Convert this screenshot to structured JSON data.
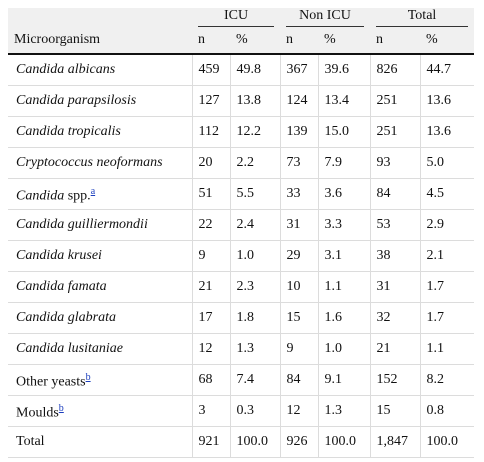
{
  "table": {
    "column_label": "Microorganism",
    "group_headers": [
      "ICU",
      "Non ICU",
      "Total"
    ],
    "sub_headers": [
      "n",
      "%",
      "n",
      "%",
      "n",
      "%"
    ],
    "rows": [
      {
        "species": "Candida albicans",
        "values": [
          "459",
          "49.8",
          "367",
          "39.6",
          "826",
          "44.7"
        ]
      },
      {
        "species": "Candida parapsilosis",
        "values": [
          "127",
          "13.8",
          "124",
          "13.4",
          "251",
          "13.6"
        ]
      },
      {
        "species": "Candida tropicalis",
        "values": [
          "112",
          "12.2",
          "139",
          "15.0",
          "251",
          "13.6"
        ]
      },
      {
        "species": "Cryptococcus neoformans",
        "values": [
          "20",
          "2.2",
          "73",
          "7.9",
          "93",
          "5.0"
        ]
      },
      {
        "species": "Candida",
        "label": "spp.",
        "note": "a",
        "values": [
          "51",
          "5.5",
          "33",
          "3.6",
          "84",
          "4.5"
        ]
      },
      {
        "species": "Candida guilliermondii",
        "values": [
          "22",
          "2.4",
          "31",
          "3.3",
          "53",
          "2.9"
        ]
      },
      {
        "species": "Candida krusei",
        "values": [
          "9",
          "1.0",
          "29",
          "3.1",
          "38",
          "2.1"
        ]
      },
      {
        "species": "Candida famata",
        "values": [
          "21",
          "2.3",
          "10",
          "1.1",
          "31",
          "1.7"
        ]
      },
      {
        "species": "Candida glabrata",
        "values": [
          "17",
          "1.8",
          "15",
          "1.6",
          "32",
          "1.7"
        ]
      },
      {
        "species": "Candida lusitaniae",
        "values": [
          "12",
          "1.3",
          "9",
          "1.0",
          "21",
          "1.1"
        ]
      },
      {
        "label": "Other yeasts",
        "note": "b",
        "values": [
          "68",
          "7.4",
          "84",
          "9.1",
          "152",
          "8.2"
        ]
      },
      {
        "label": "Moulds",
        "note": "b",
        "values": [
          "3",
          "0.3",
          "12",
          "1.3",
          "15",
          "0.8"
        ]
      },
      {
        "label": "Total",
        "values": [
          "921",
          "100.0",
          "926",
          "100.0",
          "1,847",
          "100.0"
        ]
      }
    ]
  }
}
